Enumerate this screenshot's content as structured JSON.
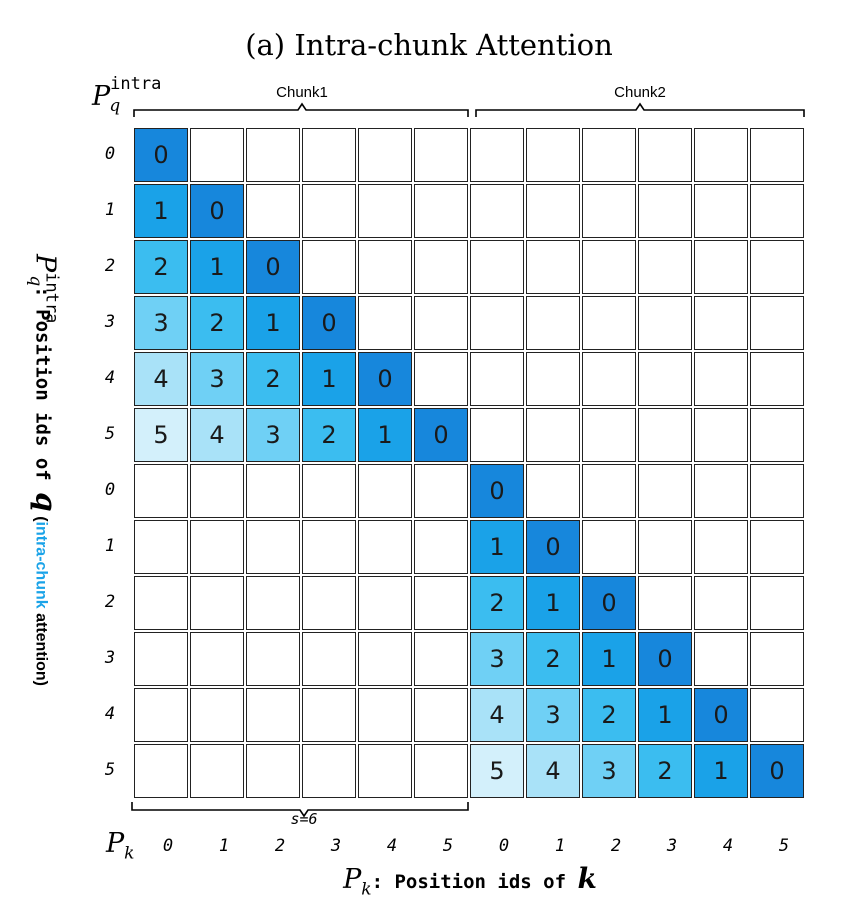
{
  "title": "(a) Intra-chunk Attention",
  "q_axis_symbol": {
    "base": "P",
    "sub": "q",
    "sup": "intra"
  },
  "k_axis_symbol": {
    "base": "P",
    "sub": "k"
  },
  "chunks": [
    "Chunk1",
    "Chunk2"
  ],
  "chunk_size_label": "s=6",
  "y_axis_title": {
    "symbol": {
      "base": "P",
      "sub": "q",
      "sup": "intra"
    },
    "text": ": Position ids of ",
    "var": "q",
    "paren_open": " (",
    "highlight": "intra-chunk",
    "rest": " attention)"
  },
  "x_axis_title": {
    "symbol": {
      "base": "P",
      "sub": "k"
    },
    "text": ": Position ids of ",
    "var": "k"
  },
  "row_labels": [
    "0",
    "1",
    "2",
    "3",
    "4",
    "5",
    "0",
    "1",
    "2",
    "3",
    "4",
    "5"
  ],
  "col_labels": [
    "0",
    "1",
    "2",
    "3",
    "4",
    "5",
    "0",
    "1",
    "2",
    "3",
    "4",
    "5"
  ],
  "colors": {
    "d0": "#1787dc",
    "d1": "#1aa2e8",
    "d2": "#3bbdf0",
    "d3": "#6fd0f5",
    "d4": "#a9e2f8",
    "d5": "#d3f0fb",
    "empty": "#ffffff"
  },
  "matrix": [
    [
      "0",
      "",
      "",
      "",
      "",
      "",
      "",
      "",
      "",
      "",
      "",
      ""
    ],
    [
      "1",
      "0",
      "",
      "",
      "",
      "",
      "",
      "",
      "",
      "",
      "",
      ""
    ],
    [
      "2",
      "1",
      "0",
      "",
      "",
      "",
      "",
      "",
      "",
      "",
      "",
      ""
    ],
    [
      "3",
      "2",
      "1",
      "0",
      "",
      "",
      "",
      "",
      "",
      "",
      "",
      ""
    ],
    [
      "4",
      "3",
      "2",
      "1",
      "0",
      "",
      "",
      "",
      "",
      "",
      "",
      ""
    ],
    [
      "5",
      "4",
      "3",
      "2",
      "1",
      "0",
      "",
      "",
      "",
      "",
      "",
      ""
    ],
    [
      "",
      "",
      "",
      "",
      "",
      "",
      "0",
      "",
      "",
      "",
      "",
      ""
    ],
    [
      "",
      "",
      "",
      "",
      "",
      "",
      "1",
      "0",
      "",
      "",
      "",
      ""
    ],
    [
      "",
      "",
      "",
      "",
      "",
      "",
      "2",
      "1",
      "0",
      "",
      "",
      ""
    ],
    [
      "",
      "",
      "",
      "",
      "",
      "",
      "3",
      "2",
      "1",
      "0",
      "",
      ""
    ],
    [
      "",
      "",
      "",
      "",
      "",
      "",
      "4",
      "3",
      "2",
      "1",
      "0",
      ""
    ],
    [
      "",
      "",
      "",
      "",
      "",
      "",
      "5",
      "4",
      "3",
      "2",
      "1",
      "0"
    ]
  ]
}
